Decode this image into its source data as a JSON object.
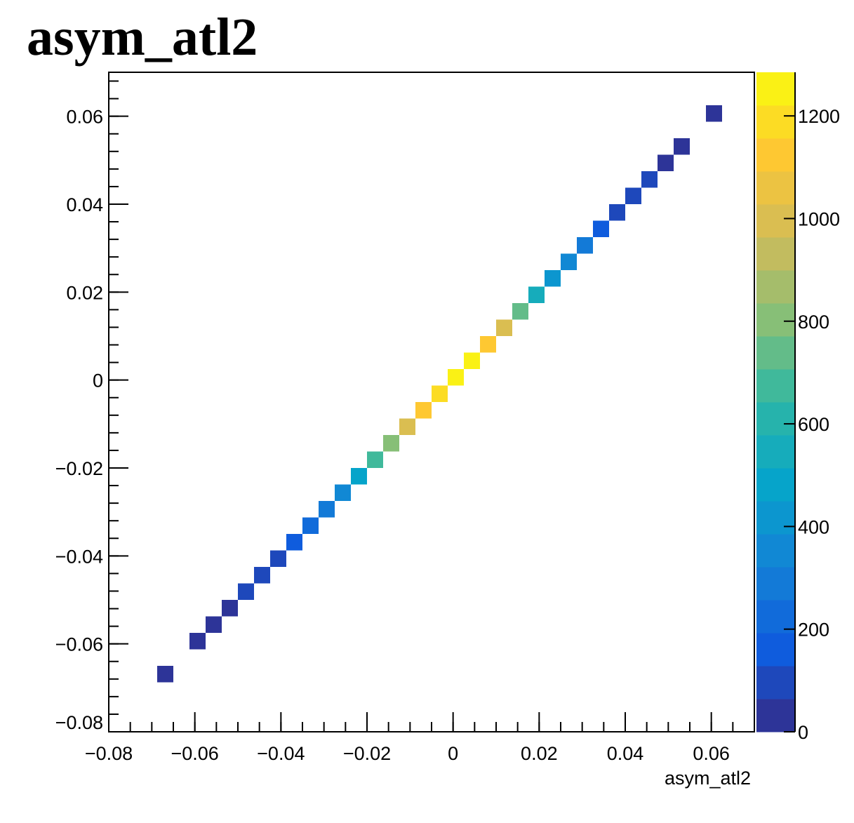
{
  "chart_data": {
    "type": "heatmap",
    "title": "asym_atl2",
    "x_label": "asym_atl2",
    "bin_width": 0.00375,
    "x": [
      -0.066875,
      -0.059375,
      -0.055625,
      -0.051875,
      -0.048125,
      -0.044375,
      -0.040625,
      -0.036875,
      -0.033125,
      -0.029375,
      -0.025625,
      -0.021875,
      -0.018125,
      -0.014375,
      -0.010625,
      -0.006875,
      -0.003125,
      0.000625,
      0.004375,
      0.008125,
      0.011875,
      0.015625,
      0.019375,
      0.023125,
      0.026875,
      0.030625,
      0.034375,
      0.038125,
      0.041875,
      0.045625,
      0.049375,
      0.053125,
      0.060625
    ],
    "y": [
      -0.066875,
      -0.059375,
      -0.055625,
      -0.051875,
      -0.048125,
      -0.044375,
      -0.040625,
      -0.036875,
      -0.033125,
      -0.029375,
      -0.025625,
      -0.021875,
      -0.018125,
      -0.014375,
      -0.010625,
      -0.006875,
      -0.003125,
      0.000625,
      0.004375,
      0.008125,
      0.011875,
      0.015625,
      0.019375,
      0.023125,
      0.026875,
      0.030625,
      0.034375,
      0.038125,
      0.041875,
      0.045625,
      0.049375,
      0.053125,
      0.060625
    ],
    "values": [
      20,
      30,
      50,
      60,
      70,
      80,
      100,
      170,
      220,
      300,
      380,
      480,
      680,
      800,
      1000,
      1130,
      1220,
      1260,
      1230,
      1150,
      970,
      720,
      560,
      400,
      330,
      270,
      160,
      120,
      80,
      70,
      60,
      40,
      20
    ],
    "xlim": [
      -0.08,
      0.07
    ],
    "ylim": [
      -0.08,
      0.07
    ],
    "xticks": [
      {
        "value": -0.08,
        "label": "−0.08"
      },
      {
        "value": -0.06,
        "label": "−0.06"
      },
      {
        "value": -0.04,
        "label": "−0.04"
      },
      {
        "value": -0.02,
        "label": "−0.02"
      },
      0,
      0.02,
      0.04,
      0.06
    ],
    "yticks": [
      {
        "value": -0.08,
        "label": "−0.08"
      },
      {
        "value": -0.06,
        "label": "−0.06"
      },
      {
        "value": -0.04,
        "label": "−0.04"
      },
      {
        "value": -0.02,
        "label": "−0.02"
      },
      0,
      0.02,
      0.04,
      0.06
    ],
    "zlim": [
      0,
      1285
    ],
    "zticks": [
      0,
      200,
      400,
      600,
      800,
      1000,
      1200
    ],
    "levels": 20,
    "colorscale": [
      "#352a87",
      "#0f5cdd",
      "#1481d6",
      "#06a4ca",
      "#2eb7a4",
      "#87bf77",
      "#d1bb59",
      "#fec832",
      "#f9fb0e"
    ]
  }
}
